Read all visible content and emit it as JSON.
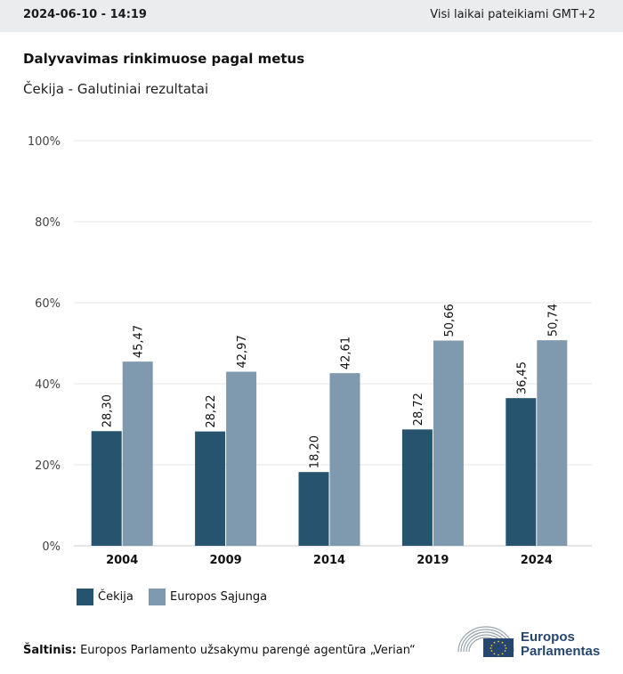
{
  "header": {
    "timestamp": "2024-06-10 - 14:19",
    "timezone_note": "Visi laikai pateikiami GMT+2"
  },
  "chart_data": {
    "type": "bar",
    "title": "Dalyvavimas rinkimuose pagal metus",
    "subtitle": "Čekija - Galutiniai rezultatai",
    "categories": [
      "2004",
      "2009",
      "2014",
      "2019",
      "2024"
    ],
    "series": [
      {
        "name": "Čekija",
        "color": "#26546f",
        "values": [
          28.3,
          28.22,
          18.2,
          28.72,
          36.45
        ],
        "labels": [
          "28,30",
          "28,22",
          "18,20",
          "28,72",
          "36,45"
        ]
      },
      {
        "name": "Europos Sąjunga",
        "color": "#7f9aae",
        "values": [
          45.47,
          42.97,
          42.61,
          50.66,
          50.74
        ],
        "labels": [
          "45,47",
          "42,97",
          "42,61",
          "50,66",
          "50,74"
        ]
      }
    ],
    "ylim": [
      0,
      100
    ],
    "yticks": [
      0,
      20,
      40,
      60,
      80,
      100
    ],
    "ytick_labels": [
      "0%",
      "20%",
      "40%",
      "60%",
      "80%",
      "100%"
    ],
    "grid": true,
    "legend_position": "bottom-left"
  },
  "legend": {
    "items": [
      {
        "label": "Čekija",
        "color": "#26546f"
      },
      {
        "label": "Europos Sąjunga",
        "color": "#7f9aae"
      }
    ]
  },
  "source": {
    "label": "Šaltinis:",
    "text": "Europos Parlamento užsakymu parengė agentūra „Verian“"
  },
  "logo": {
    "line1": "Europos",
    "line2": "Parlamentas",
    "icon": "european-parliament-hemicycle-logo",
    "color": "#26466f"
  }
}
